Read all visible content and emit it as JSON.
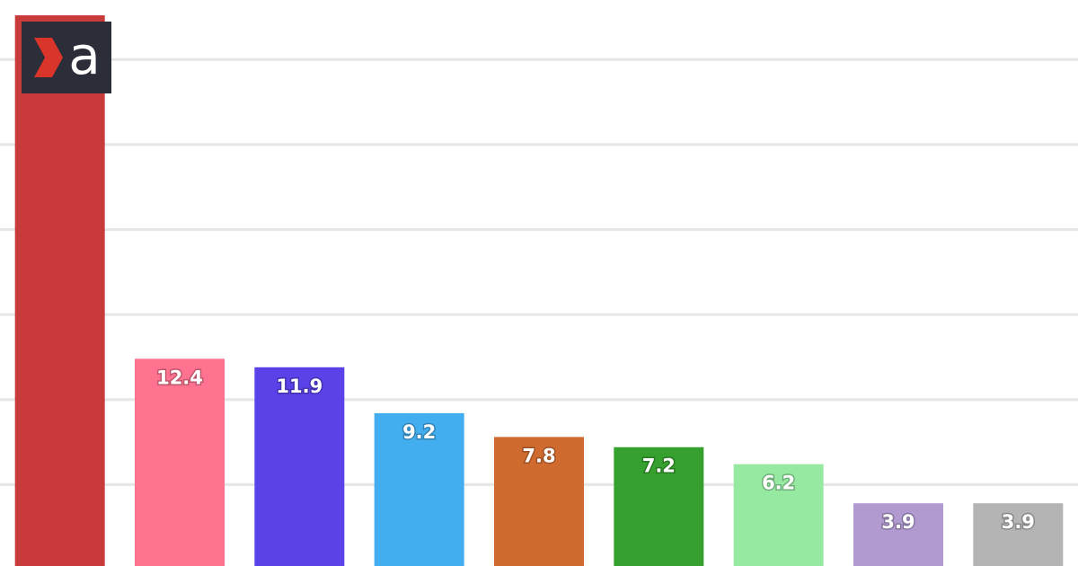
{
  "chart_data": {
    "type": "bar",
    "categories": [
      null,
      null,
      null,
      null,
      null,
      null,
      null,
      null,
      null
    ],
    "values": [
      32.6,
      12.4,
      11.9,
      9.2,
      7.8,
      7.2,
      6.2,
      3.9,
      3.9
    ],
    "colors": [
      "#c93a3a",
      "#ff7390",
      "#5842e8",
      "#42aef0",
      "#d06b30",
      "#35a02e",
      "#95e9a0",
      "#b09ad0",
      "#b4b4b4"
    ],
    "ylim": [
      0,
      33.5
    ],
    "yticks": [
      5,
      10,
      15,
      20,
      25,
      30
    ],
    "grid": true
  },
  "logo": {
    "text": "a"
  }
}
